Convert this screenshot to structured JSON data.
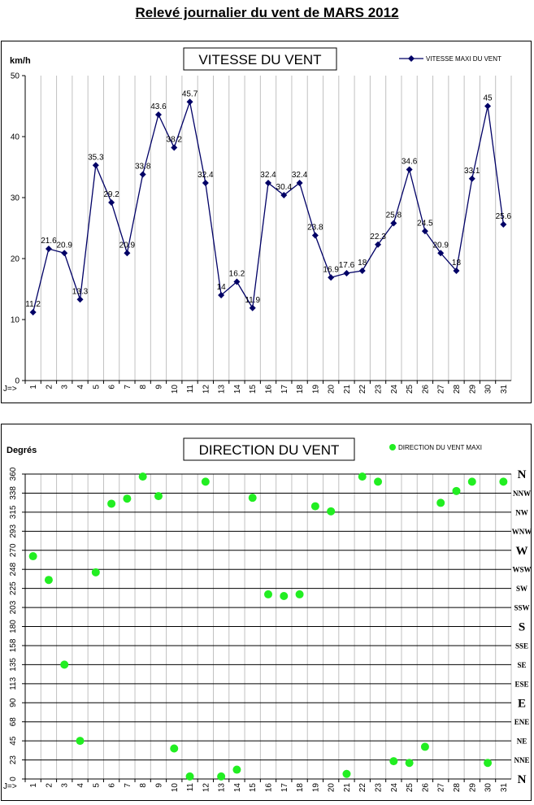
{
  "page_title": "Relevé journalier du vent de MARS 2012",
  "chart_data": [
    {
      "type": "line",
      "title": "VITESSE DU VENT",
      "ylabel": "km/h",
      "xlabel": "J=>",
      "ylim": [
        0,
        50
      ],
      "yticks": [
        0,
        10,
        20,
        30,
        40,
        50
      ],
      "grid": "vertical",
      "legend_position": "top-right",
      "categories": [
        "1",
        "2",
        "3",
        "4",
        "5",
        "6",
        "7",
        "8",
        "9",
        "10",
        "11",
        "12",
        "13",
        "14",
        "15",
        "16",
        "17",
        "18",
        "19",
        "20",
        "21",
        "22",
        "23",
        "24",
        "25",
        "26",
        "27",
        "28",
        "29",
        "30",
        "31"
      ],
      "series": [
        {
          "name": "VITESSE MAXI DU VENT",
          "color": "#000066",
          "values": [
            11.2,
            21.6,
            20.9,
            13.3,
            35.3,
            29.2,
            20.9,
            33.8,
            43.6,
            38.2,
            45.7,
            32.4,
            14,
            16.2,
            11.9,
            32.4,
            30.4,
            32.4,
            23.8,
            16.9,
            17.6,
            18,
            22.3,
            25.8,
            34.6,
            24.5,
            20.9,
            18,
            33.1,
            45,
            25.6
          ],
          "labels": [
            "11.2",
            "21.6",
            "20.9",
            "13.3",
            "35.3",
            "29.2",
            "20.9",
            "33.8",
            "43.6",
            "38.2",
            "45.7",
            "32.4",
            "14",
            "16.2",
            "11.9",
            "32.4",
            "30.4",
            "32.4",
            "23.8",
            "16.9",
            "17.6",
            "18",
            "22.3",
            "25.8",
            "34.6",
            "24.5",
            "20.9",
            "18",
            "33.1",
            "45",
            "25.6"
          ]
        }
      ]
    },
    {
      "type": "scatter",
      "title": "DIRECTION DU VENT",
      "ylabel": "Degrés",
      "xlabel": "J=>",
      "ylim": [
        0,
        360
      ],
      "yticks": [
        "0",
        "23",
        "45",
        "68",
        "90",
        "113",
        "135",
        "158",
        "180",
        "203",
        "225",
        "248",
        "270",
        "293",
        "315",
        "338",
        "360"
      ],
      "compass_labels": [
        "N",
        "NNE",
        "NE",
        "ENE",
        "E",
        "ESE",
        "SE",
        "SSE",
        "S",
        "SSW",
        "SW",
        "WSW",
        "W",
        "WNW",
        "NW",
        "NNW",
        "N"
      ],
      "grid": "both",
      "legend_position": "top-right",
      "categories": [
        "1",
        "2",
        "3",
        "4",
        "5",
        "6",
        "7",
        "8",
        "9",
        "10",
        "11",
        "12",
        "13",
        "14",
        "15",
        "16",
        "17",
        "18",
        "19",
        "20",
        "21",
        "22",
        "23",
        "24",
        "25",
        "26",
        "27",
        "28",
        "29",
        "30",
        "31"
      ],
      "series": [
        {
          "name": "DIRECTION DU VENT MAXI",
          "color": "#22ee22",
          "values": [
            263,
            235,
            135,
            45,
            244,
            325,
            331,
            357,
            334,
            36,
            3,
            351,
            3,
            11,
            332,
            218,
            216,
            218,
            322,
            316,
            6,
            357,
            351,
            21,
            19,
            38,
            326,
            340,
            351,
            19,
            351
          ]
        }
      ]
    }
  ]
}
